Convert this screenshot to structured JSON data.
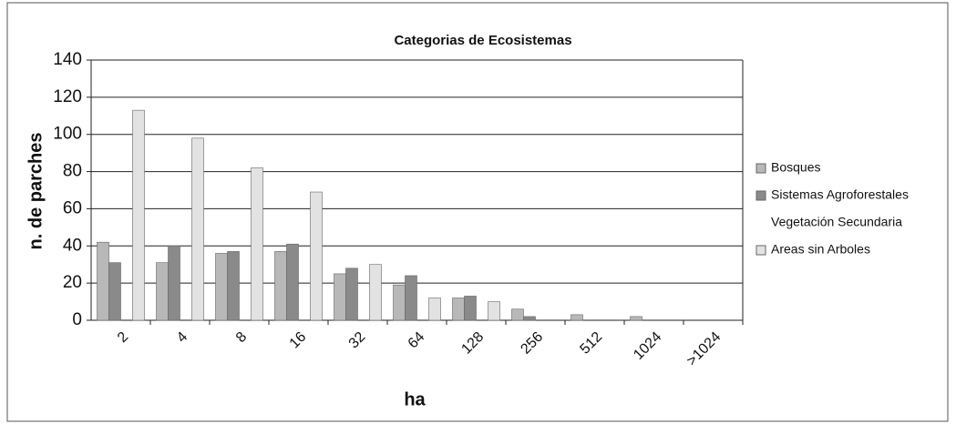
{
  "chart_data": {
    "type": "bar",
    "title": "Categorias de Ecosistemas",
    "x_label": "ha",
    "y_label": "n. de parches",
    "categories": [
      "2",
      "4",
      "8",
      "16",
      "32",
      "64",
      "128",
      "256",
      "512",
      "1024",
      ">1024"
    ],
    "series": [
      {
        "name": "Bosques",
        "color": "#b8b8b8",
        "values": [
          42,
          31,
          36,
          37,
          25,
          19,
          12,
          6,
          3,
          2,
          0
        ]
      },
      {
        "name": "Sistemas Agroforestales",
        "color": "#8a8a8a",
        "values": [
          31,
          40,
          37,
          41,
          28,
          24,
          13,
          2,
          0,
          0,
          0
        ]
      },
      {
        "name": "Vegetación Secundaria",
        "color": "#ffffff",
        "values": [
          null,
          null,
          null,
          null,
          null,
          null,
          null,
          null,
          null,
          null,
          null
        ]
      },
      {
        "name": "Areas sin Arboles",
        "color": "#e2e2e2",
        "values": [
          113,
          98,
          82,
          69,
          30,
          12,
          10,
          0,
          0,
          0,
          0
        ]
      }
    ],
    "ylim": [
      0,
      140
    ],
    "yticks": [
      0,
      20,
      40,
      60,
      80,
      100,
      120,
      140
    ],
    "grid": true,
    "legend": "right"
  }
}
